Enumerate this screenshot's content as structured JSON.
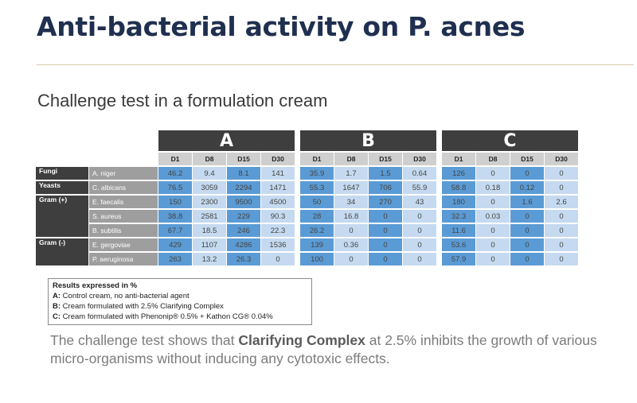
{
  "title": "Anti-bacterial activity on P. acnes",
  "subtitle": "Challenge test in a formulation cream",
  "groups": [
    "A",
    "B",
    "C"
  ],
  "days": [
    "D1",
    "D8",
    "D15",
    "D30"
  ],
  "rows": [
    {
      "category": "Fungi",
      "organism": "A. niger",
      "values": [
        "46.2",
        "9.4",
        "8.1",
        "141",
        "35.9",
        "1.7",
        "1.5",
        "0.64",
        "126",
        "0",
        "0",
        "0"
      ]
    },
    {
      "category": "Yeasts",
      "organism": "C. albicans",
      "values": [
        "76.5",
        "3059",
        "2294",
        "1471",
        "55.3",
        "1647",
        "706",
        "55.9",
        "58.8",
        "0.18",
        "0.12",
        "0"
      ]
    },
    {
      "category": "Gram (+)",
      "organism": "E. faecalis",
      "values": [
        "150",
        "2300",
        "9500",
        "4500",
        "50",
        "34",
        "270",
        "43",
        "180",
        "0",
        "1.6",
        "2.6"
      ]
    },
    {
      "category": "",
      "organism": "S. aureus",
      "values": [
        "38.8",
        "2581",
        "229",
        "90.3",
        "28",
        "16.8",
        "0",
        "0",
        "32.3",
        "0.03",
        "0",
        "0"
      ]
    },
    {
      "category": "",
      "organism": "B. subtilis",
      "values": [
        "67.7",
        "18.5",
        "246",
        "22.3",
        "26.2",
        "0",
        "0",
        "0",
        "11.6",
        "0",
        "0",
        "0"
      ]
    },
    {
      "category": "Gram (-)",
      "organism": "E. gergoviae",
      "values": [
        "429",
        "1107",
        "4286",
        "1536",
        "139",
        "0.36",
        "0",
        "0",
        "53.6",
        "0",
        "0",
        "0"
      ]
    },
    {
      "category": "",
      "organism": "P. aeruginosa",
      "values": [
        "263",
        "13.2",
        "26.3",
        "0",
        "100",
        "0",
        "0",
        "0",
        "57.9",
        "0",
        "0",
        "0"
      ]
    }
  ],
  "legend": {
    "heading": "Results expressed in %",
    "a_key": "A:",
    "a_text": " Control cream, no anti-bacterial agent",
    "b_key": "B:",
    "b_text": " Cream formulated with 2.5% Clarifying Complex",
    "c_key": "C:",
    "c_text": " Cream formulated with Phenonip® 0.5% + Kathon CG® 0.04%"
  },
  "conclusion": {
    "part1": "The challenge test shows that ",
    "bold": "Clarifying Complex",
    "part2": " at 2.5% inhibits the growth of various micro-organisms without inducing any cytotoxic effects."
  },
  "colors": {
    "dark_cell": "#5b9bd5",
    "light_cell": "#c5daf0",
    "header_dark": "#3e3e3e",
    "title": "#1f2f4f"
  }
}
